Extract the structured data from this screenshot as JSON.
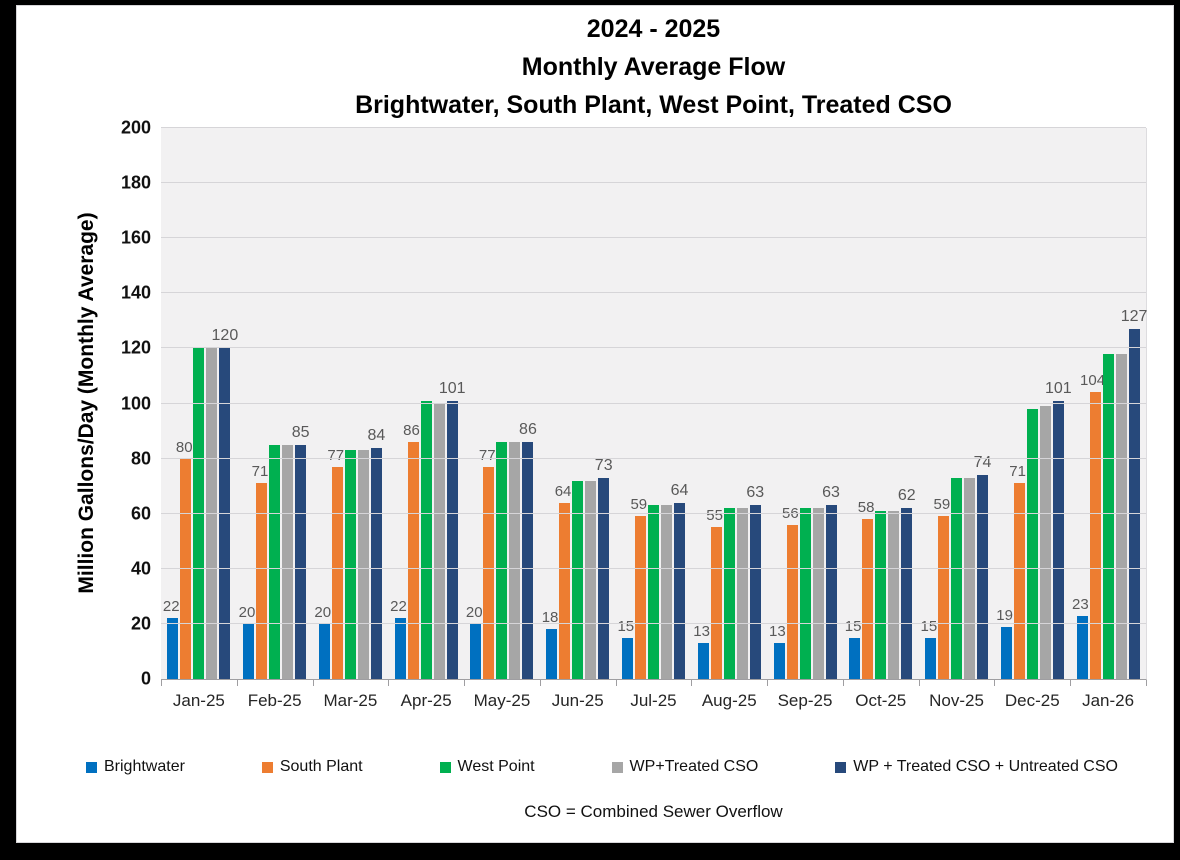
{
  "title": {
    "line1": "2024 - 2025",
    "line2": "Monthly Average Flow",
    "line3": "Brightwater, South Plant, West Point, Treated CSO"
  },
  "footnote": "CSO = Combined Sewer Overflow",
  "colors": {
    "frame": "#000000",
    "plot_background": "#f2f1f2",
    "gridline": "#d6d5d8",
    "axis_line": "#9f9ea1",
    "data_label": "#595959",
    "brightwater": "#0070C0",
    "south_plant": "#ED7D31",
    "west_point": "#00B050",
    "wp_treated_cso": "#A6A6A6",
    "wp_treated_untreated_cso": "#27497B"
  },
  "chart_data": {
    "type": "bar",
    "title": "2024 - 2025 Monthly Average Flow — Brightwater, South Plant, West Point, Treated CSO",
    "xlabel": "",
    "ylabel": "Million Gallons/Day (Monthly Average)",
    "ylim": [
      0,
      200
    ],
    "ytick_step": 20,
    "y_ticks": [
      0,
      20,
      40,
      60,
      80,
      100,
      120,
      140,
      160,
      180,
      200
    ],
    "grid": true,
    "legend_position": "bottom",
    "categories": [
      "Jan-25",
      "Feb-25",
      "Mar-25",
      "Apr-25",
      "May-25",
      "Jun-25",
      "Jul-25",
      "Aug-25",
      "Sep-25",
      "Oct-25",
      "Nov-25",
      "Dec-25",
      "Jan-26"
    ],
    "series": [
      {
        "name": "Brightwater",
        "color": "#0070C0",
        "show_labels": true,
        "values": [
          22,
          20,
          20,
          22,
          20,
          18,
          15,
          13,
          13,
          15,
          15,
          19,
          23
        ]
      },
      {
        "name": "South Plant",
        "color": "#ED7D31",
        "show_labels": true,
        "values": [
          80,
          71,
          77,
          86,
          77,
          64,
          59,
          55,
          56,
          58,
          59,
          71,
          104
        ]
      },
      {
        "name": "West Point",
        "color": "#00B050",
        "show_labels": false,
        "values": [
          120,
          85,
          83,
          101,
          86,
          72,
          63,
          62,
          62,
          61,
          73,
          98,
          118
        ]
      },
      {
        "name": "WP+Treated CSO",
        "color": "#A6A6A6",
        "show_labels": false,
        "values": [
          120,
          85,
          83,
          100,
          86,
          72,
          63,
          62,
          62,
          61,
          73,
          99,
          118
        ]
      },
      {
        "name": "WP + Treated CSO + Untreated CSO",
        "color": "#27497B",
        "show_labels": true,
        "values": [
          120,
          85,
          84,
          101,
          86,
          73,
          64,
          63,
          63,
          62,
          74,
          101,
          127
        ]
      }
    ]
  }
}
